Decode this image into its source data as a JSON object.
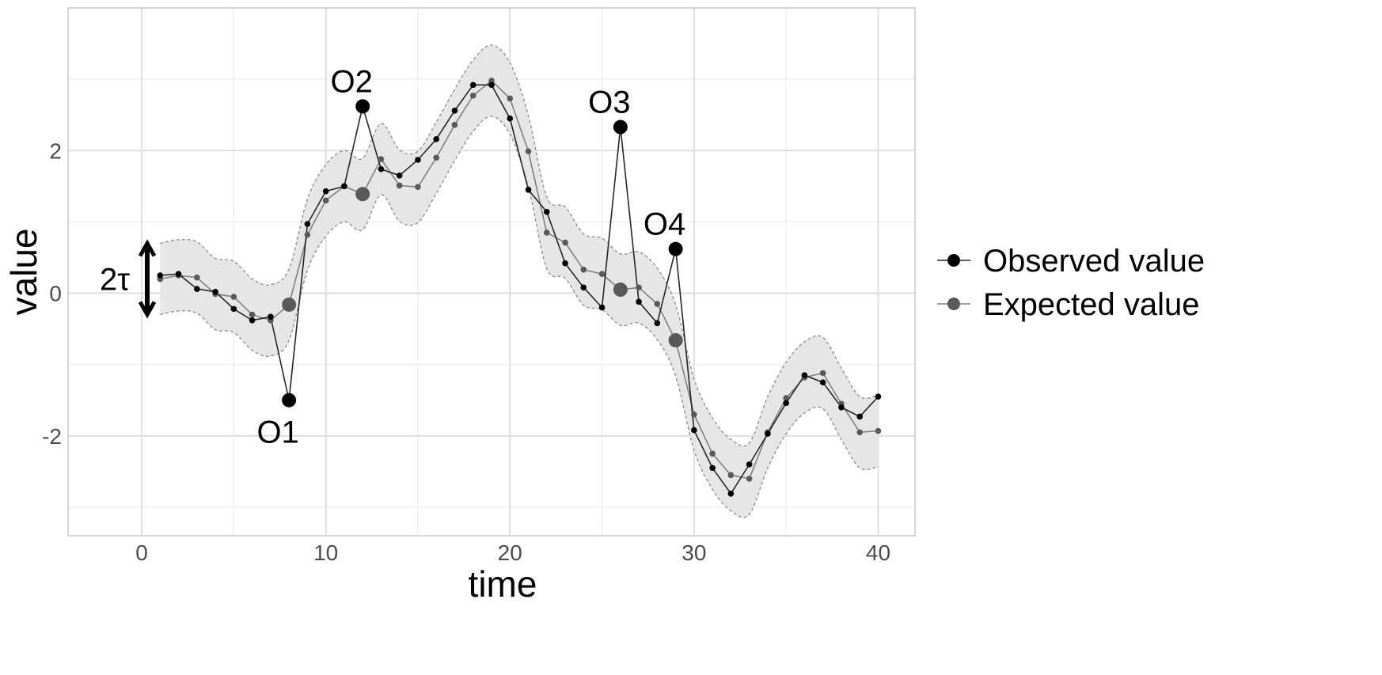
{
  "chart_data": {
    "type": "line",
    "xlabel": "time",
    "ylabel": "value",
    "xlim": [
      -4,
      42
    ],
    "ylim": [
      -3.4,
      4.0
    ],
    "x_ticks": [
      0,
      10,
      20,
      30,
      40
    ],
    "x_tick_labels": [
      "0",
      "10",
      "20",
      "30",
      "40"
    ],
    "y_ticks": [
      -2,
      0,
      2
    ],
    "y_tick_labels": [
      "-2",
      "0",
      "2"
    ],
    "y_minor_ticks": [
      -3,
      -1,
      1,
      3
    ],
    "grid": true,
    "legend": {
      "placement": "right"
    },
    "x": [
      1,
      2,
      3,
      4,
      5,
      6,
      7,
      8,
      9,
      10,
      11,
      12,
      13,
      14,
      15,
      16,
      17,
      18,
      19,
      20,
      21,
      22,
      23,
      24,
      25,
      26,
      27,
      28,
      29,
      30,
      31,
      32,
      33,
      34,
      35,
      36,
      37,
      38,
      39,
      40
    ],
    "series": [
      {
        "name": "Observed value",
        "color": "#000000",
        "values": [
          0.25,
          0.27,
          0.06,
          0.02,
          -0.22,
          -0.38,
          -0.33,
          -1.5,
          0.97,
          1.43,
          1.5,
          2.62,
          1.74,
          1.65,
          1.87,
          2.16,
          2.56,
          2.92,
          2.92,
          2.45,
          1.45,
          1.14,
          0.42,
          0.08,
          -0.2,
          2.33,
          -0.12,
          -0.42,
          0.62,
          -1.92,
          -2.45,
          -2.81,
          -2.4,
          -1.97,
          -1.54,
          -1.15,
          -1.25,
          -1.6,
          -1.73,
          -1.45
        ]
      },
      {
        "name": "Expected value",
        "color": "#595959",
        "values": [
          0.2,
          0.25,
          0.22,
          -0.01,
          -0.05,
          -0.3,
          -0.38,
          -0.16,
          0.82,
          1.3,
          1.5,
          1.39,
          1.88,
          1.51,
          1.49,
          1.9,
          2.36,
          2.77,
          2.98,
          2.73,
          1.99,
          0.85,
          0.71,
          0.33,
          0.27,
          0.05,
          0.08,
          -0.15,
          -0.66,
          -1.7,
          -2.25,
          -2.55,
          -2.6,
          -1.95,
          -1.47,
          -1.18,
          -1.12,
          -1.55,
          -1.95,
          -1.93
        ]
      }
    ],
    "band": {
      "lower": [
        -0.3,
        -0.25,
        -0.28,
        -0.51,
        -0.55,
        -0.8,
        -0.88,
        -0.66,
        0.32,
        0.8,
        1.0,
        0.89,
        1.38,
        1.01,
        0.99,
        1.4,
        1.86,
        2.27,
        2.48,
        2.23,
        1.49,
        0.35,
        0.21,
        -0.17,
        -0.23,
        -0.45,
        -0.42,
        -0.65,
        -1.16,
        -2.2,
        -2.75,
        -3.05,
        -3.1,
        -2.45,
        -1.97,
        -1.68,
        -1.62,
        -2.05,
        -2.45,
        -2.43
      ],
      "upper": [
        0.7,
        0.75,
        0.72,
        0.49,
        0.45,
        0.2,
        0.12,
        0.34,
        1.32,
        1.8,
        2.0,
        1.89,
        2.38,
        2.01,
        1.99,
        2.4,
        2.86,
        3.27,
        3.48,
        3.23,
        2.49,
        1.35,
        1.21,
        0.83,
        0.77,
        0.55,
        0.58,
        0.35,
        -0.16,
        -1.2,
        -1.75,
        -2.05,
        -2.1,
        -1.45,
        -0.97,
        -0.68,
        -0.62,
        -1.05,
        -1.45,
        -1.43
      ],
      "color": "#e6e6e6"
    },
    "highlighted": [
      {
        "x": 8,
        "observed": -1.5,
        "expected": -0.16
      },
      {
        "x": 12,
        "observed": 2.62,
        "expected": 1.39
      },
      {
        "x": 26,
        "observed": 2.33,
        "expected": 0.05
      },
      {
        "x": 29,
        "observed": 0.62,
        "expected": -0.66
      }
    ],
    "annotations": [
      {
        "text": "O1",
        "x": 8,
        "y": -1.5,
        "position": "below"
      },
      {
        "text": "O2",
        "x": 12,
        "y": 2.62,
        "position": "above"
      },
      {
        "text": "O3",
        "x": 26,
        "y": 2.33,
        "position": "above"
      },
      {
        "text": "O4",
        "x": 29,
        "y": 0.62,
        "position": "above"
      }
    ],
    "tau_marker": {
      "text": "2τ",
      "x": 0.3,
      "y_from": -0.3,
      "y_to": 0.7
    }
  }
}
